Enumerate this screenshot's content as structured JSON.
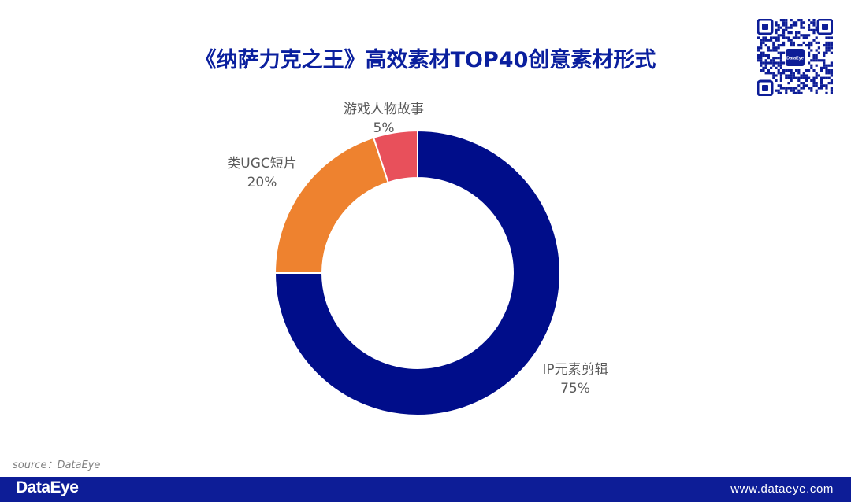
{
  "chart_data": {
    "type": "pie",
    "variant": "donut",
    "title": "《纳萨力克之王》高效素材TOP40创意素材形式",
    "categories": [
      "IP元素剪辑",
      "类UGC短片",
      "游戏人物故事"
    ],
    "values": [
      75,
      20,
      5
    ],
    "labels": [
      "75%",
      "20%",
      "5%"
    ],
    "colors": [
      "#000d8a",
      "#ee822f",
      "#e8505b"
    ],
    "start_angle_deg": 0,
    "direction": "clockwise",
    "slice_border_color": "#ffffff"
  },
  "source": "source：DataEye",
  "footer": {
    "brand": "DataEye",
    "url": "www.dataeye.com"
  },
  "qr": {
    "center_logo_text": "DataEye"
  },
  "colors": {
    "title": "#0a1f9e",
    "footer_background": "#0d1d97",
    "label_text": "#595959",
    "source_text": "#808080"
  }
}
